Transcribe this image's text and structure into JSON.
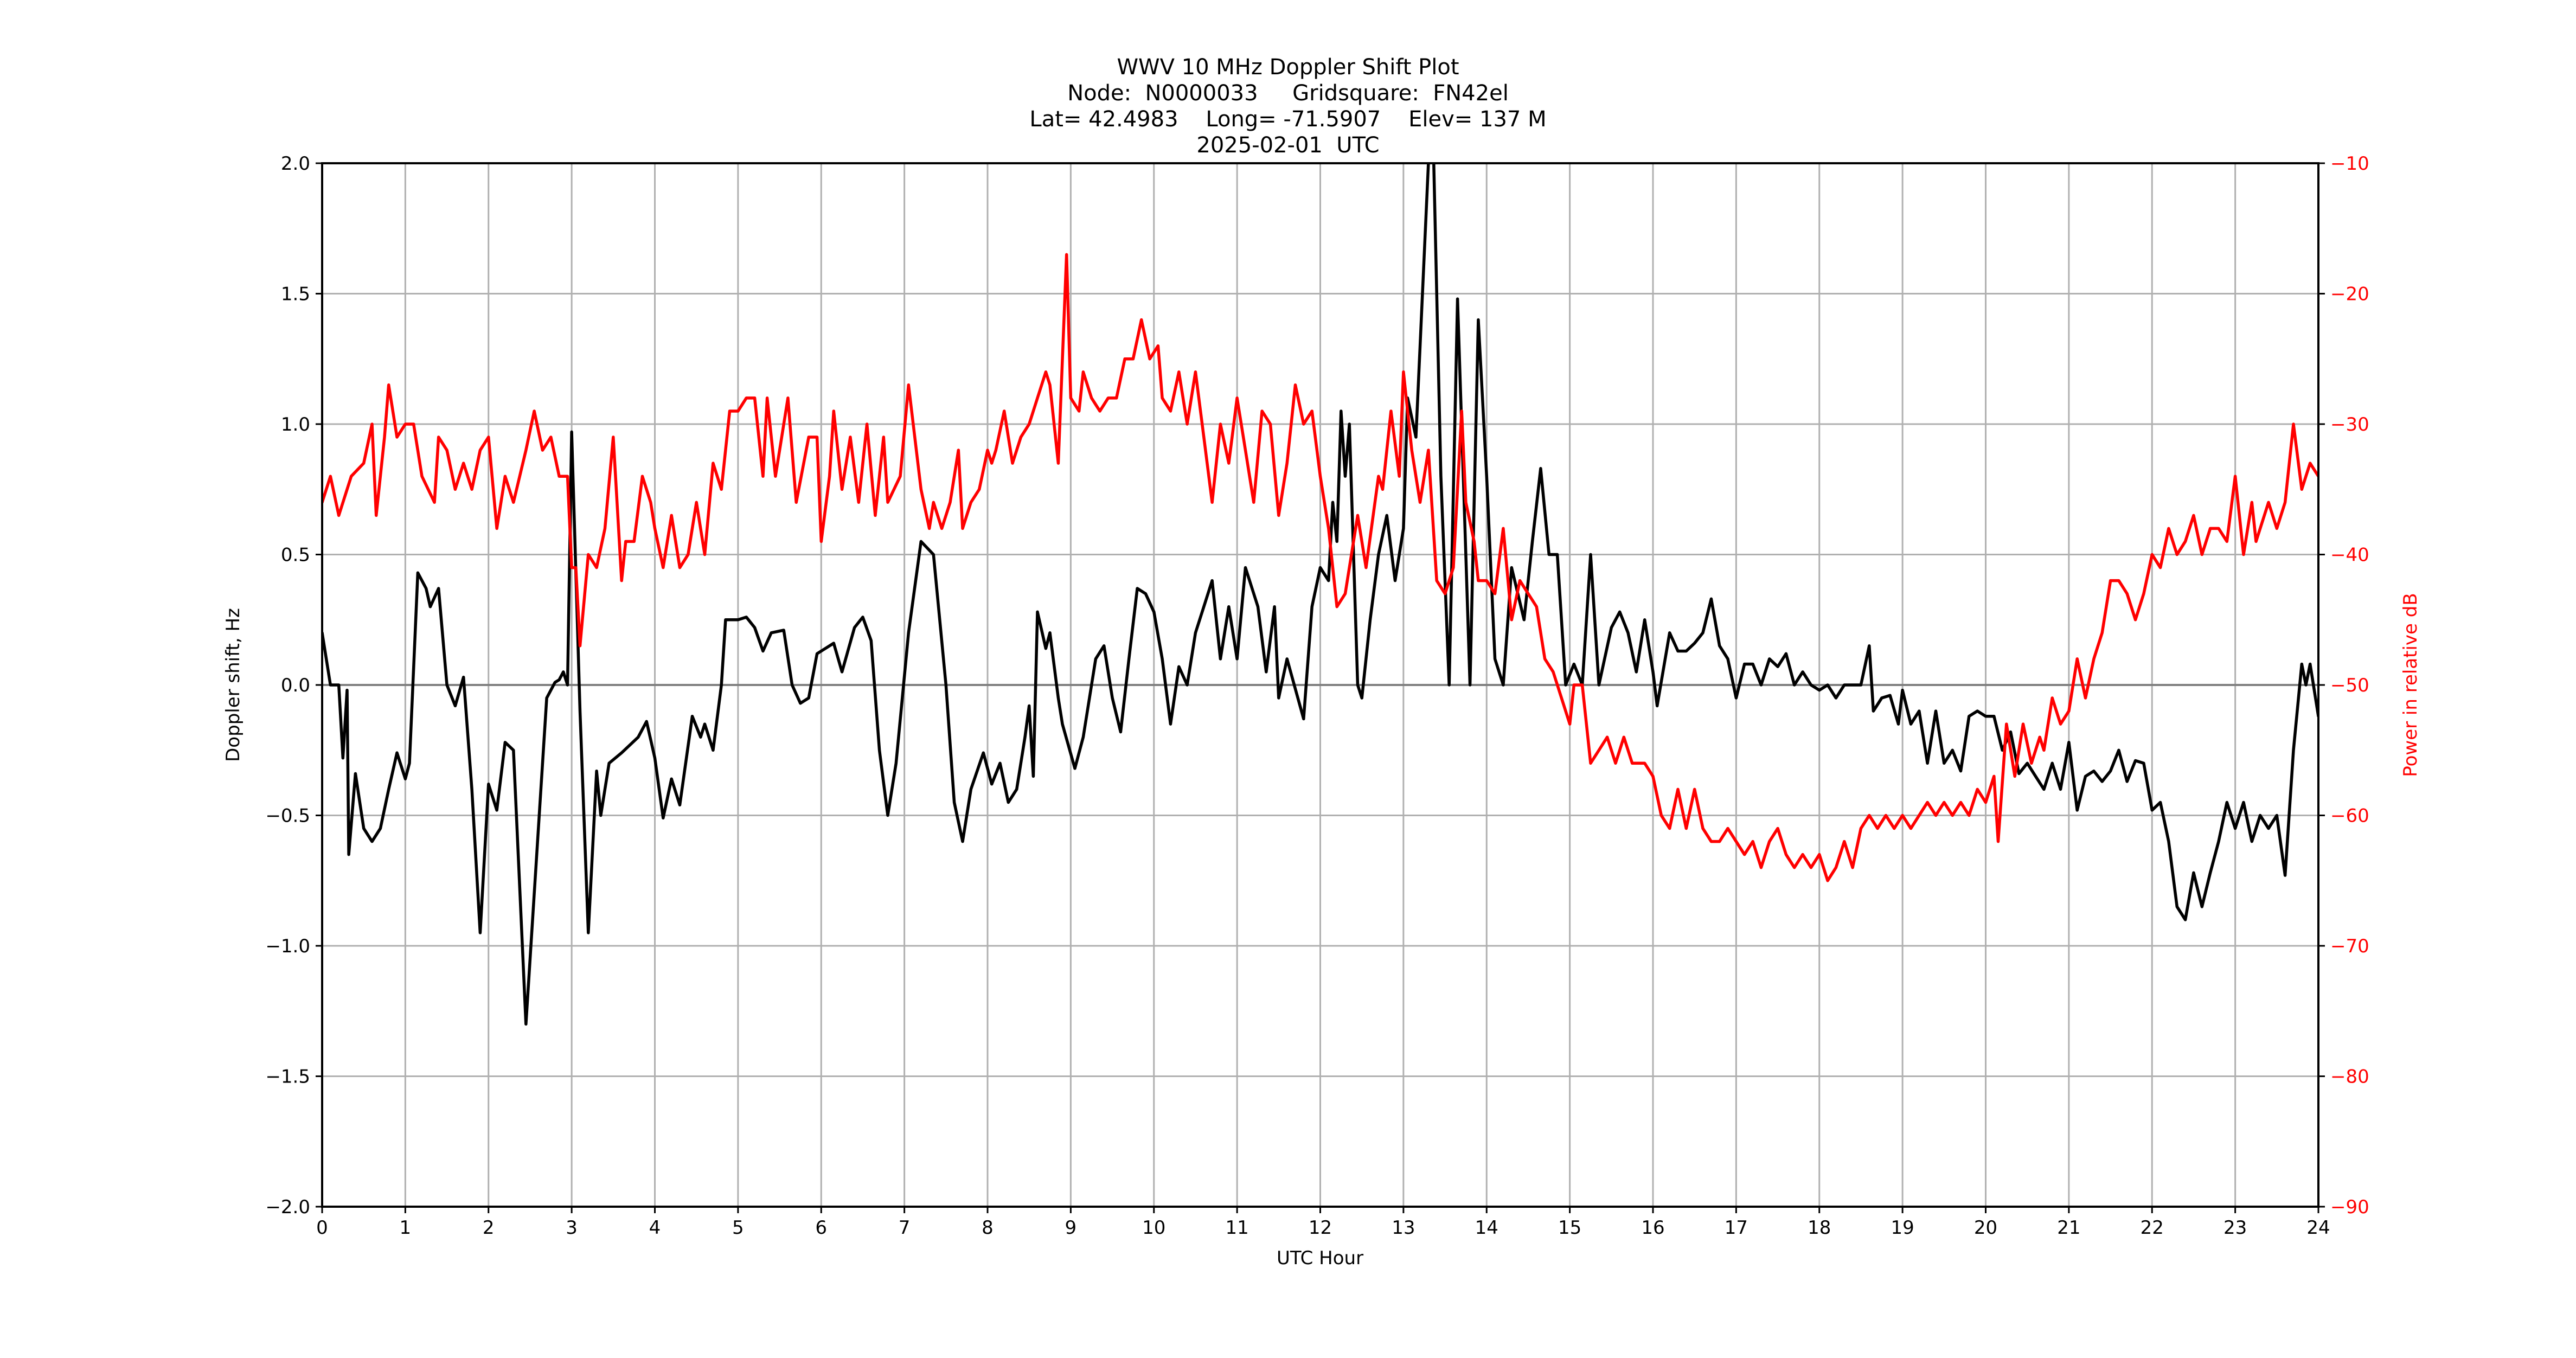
{
  "header": {
    "title_lines": [
      "WWV 10 MHz Doppler Shift Plot",
      "Node:  N0000033     Gridsquare:  FN42el",
      "Lat= 42.4983    Long= -71.5907    Elev= 137 M",
      "2025-02-01  UTC"
    ]
  },
  "axes": {
    "xlabel": "UTC Hour",
    "ylabel_left": "Doppler shift, Hz",
    "ylabel_right": "Power in relative dB",
    "x_ticks": [
      0,
      1,
      2,
      3,
      4,
      5,
      6,
      7,
      8,
      9,
      10,
      11,
      12,
      13,
      14,
      15,
      16,
      17,
      18,
      19,
      20,
      21,
      22,
      23,
      24
    ],
    "y_left_ticks": [
      "2.0",
      "1.5",
      "1.0",
      "0.5",
      "0.0",
      "−0.5",
      "−1.0",
      "−1.5",
      "−2.0"
    ],
    "y_left_values": [
      2.0,
      1.5,
      1.0,
      0.5,
      0.0,
      -0.5,
      -1.0,
      -1.5,
      -2.0
    ],
    "y_right_ticks": [
      "−10",
      "−20",
      "−30",
      "−40",
      "−50",
      "−60",
      "−70",
      "−80",
      "−90"
    ],
    "y_right_values": [
      -10,
      -20,
      -30,
      -40,
      -50,
      -60,
      -70,
      -80,
      -90
    ]
  },
  "colors": {
    "doppler_line": "#000000",
    "power_line": "#ff0000",
    "grid": "#b0b0b0",
    "zero_line": "#808080",
    "right_axis_text": "#ff0000"
  },
  "chart_data": {
    "type": "line",
    "title": "WWV 10 MHz Doppler Shift Plot",
    "subtitle": "Node: N0000033  Gridsquare: FN42el | Lat= 42.4983 Long= -71.5907 Elev= 137 M | 2025-02-01 UTC",
    "xlabel": "UTC Hour",
    "ylabel": "Doppler shift, Hz",
    "y2label": "Power in relative dB",
    "xlim": [
      0,
      24
    ],
    "ylim": [
      -2.0,
      2.0
    ],
    "y2lim": [
      -90,
      -10
    ],
    "grid": true,
    "legend": null,
    "series": [
      {
        "name": "Doppler shift (Hz)",
        "axis": "left",
        "color": "#000000",
        "x": [
          0.0,
          0.1,
          0.2,
          0.25,
          0.3,
          0.32,
          0.4,
          0.5,
          0.6,
          0.7,
          0.8,
          0.9,
          1.0,
          1.05,
          1.15,
          1.25,
          1.3,
          1.4,
          1.5,
          1.6,
          1.7,
          1.8,
          1.9,
          2.0,
          2.1,
          2.2,
          2.3,
          2.45,
          2.55,
          2.7,
          2.8,
          2.85,
          2.9,
          2.95,
          3.0,
          3.1,
          3.2,
          3.3,
          3.35,
          3.45,
          3.6,
          3.8,
          3.9,
          4.0,
          4.1,
          4.2,
          4.3,
          4.45,
          4.55,
          4.6,
          4.7,
          4.8,
          4.85,
          5.0,
          5.1,
          5.2,
          5.3,
          5.4,
          5.55,
          5.65,
          5.75,
          5.85,
          5.95,
          6.05,
          6.15,
          6.25,
          6.4,
          6.5,
          6.6,
          6.7,
          6.8,
          6.9,
          7.05,
          7.2,
          7.35,
          7.5,
          7.6,
          7.7,
          7.8,
          7.95,
          8.05,
          8.15,
          8.25,
          8.35,
          8.45,
          8.5,
          8.55,
          8.6,
          8.7,
          8.75,
          8.85,
          8.9,
          9.05,
          9.15,
          9.3,
          9.4,
          9.5,
          9.6,
          9.7,
          9.8,
          9.9,
          10.0,
          10.1,
          10.2,
          10.3,
          10.4,
          10.5,
          10.6,
          10.7,
          10.8,
          10.9,
          11.0,
          11.1,
          11.25,
          11.35,
          11.45,
          11.5,
          11.6,
          11.8,
          11.9,
          12.0,
          12.1,
          12.15,
          12.2,
          12.25,
          12.3,
          12.35,
          12.45,
          12.5,
          12.6,
          12.7,
          12.8,
          12.9,
          13.0,
          13.05,
          13.15,
          13.3,
          13.35,
          13.45,
          13.55,
          13.65,
          13.75,
          13.8,
          13.9,
          14.0,
          14.1,
          14.2,
          14.3,
          14.45,
          14.55,
          14.65,
          14.75,
          14.85,
          14.95,
          15.05,
          15.15,
          15.25,
          15.35,
          15.5,
          15.6,
          15.7,
          15.8,
          15.9,
          16.0,
          16.05,
          16.2,
          16.3,
          16.4,
          16.5,
          16.6,
          16.7,
          16.8,
          16.9,
          17.0,
          17.1,
          17.2,
          17.3,
          17.4,
          17.5,
          17.6,
          17.7,
          17.8,
          17.9,
          18.0,
          18.1,
          18.2,
          18.3,
          18.4,
          18.5,
          18.6,
          18.65,
          18.75,
          18.85,
          18.95,
          19.0,
          19.1,
          19.2,
          19.3,
          19.4,
          19.5,
          19.6,
          19.7,
          19.8,
          19.9,
          20.0,
          20.1,
          20.2,
          20.3,
          20.4,
          20.5,
          20.6,
          20.7,
          20.8,
          20.9,
          21.0,
          21.1,
          21.2,
          21.3,
          21.4,
          21.5,
          21.6,
          21.7,
          21.8,
          21.9,
          22.0,
          22.1,
          22.2,
          22.3,
          22.4,
          22.5,
          22.6,
          22.7,
          22.8,
          22.9,
          23.0,
          23.1,
          23.2,
          23.3,
          23.4,
          23.5,
          23.6,
          23.7,
          23.8,
          23.85,
          23.9,
          24.0
        ],
        "values": [
          0.2,
          0.0,
          0.0,
          -0.28,
          -0.02,
          -0.65,
          -0.34,
          -0.55,
          -0.6,
          -0.55,
          -0.4,
          -0.26,
          -0.36,
          -0.3,
          0.43,
          0.37,
          0.3,
          0.37,
          0.0,
          -0.08,
          0.03,
          -0.4,
          -0.95,
          -0.38,
          -0.48,
          -0.22,
          -0.25,
          -1.3,
          -0.8,
          -0.05,
          0.01,
          0.02,
          0.05,
          0.0,
          0.97,
          -0.1,
          -0.95,
          -0.33,
          -0.5,
          -0.3,
          -0.26,
          -0.2,
          -0.14,
          -0.28,
          -0.51,
          -0.36,
          -0.46,
          -0.12,
          -0.2,
          -0.15,
          -0.25,
          0.0,
          0.25,
          0.25,
          0.26,
          0.22,
          0.13,
          0.2,
          0.21,
          0.0,
          -0.07,
          -0.05,
          0.12,
          0.14,
          0.16,
          0.05,
          0.22,
          0.26,
          0.17,
          -0.25,
          -0.5,
          -0.3,
          0.2,
          0.55,
          0.5,
          0.0,
          -0.45,
          -0.6,
          -0.4,
          -0.26,
          -0.38,
          -0.3,
          -0.45,
          -0.4,
          -0.2,
          -0.08,
          -0.35,
          0.28,
          0.14,
          0.2,
          -0.05,
          -0.15,
          -0.32,
          -0.2,
          0.1,
          0.15,
          -0.05,
          -0.18,
          0.1,
          0.37,
          0.35,
          0.28,
          0.1,
          -0.15,
          0.07,
          0.0,
          0.2,
          0.3,
          0.4,
          0.1,
          0.3,
          0.1,
          0.45,
          0.3,
          0.05,
          0.3,
          -0.05,
          0.1,
          -0.13,
          0.3,
          0.45,
          0.4,
          0.7,
          0.55,
          1.05,
          0.8,
          1.0,
          0.0,
          -0.05,
          0.25,
          0.5,
          0.65,
          0.4,
          0.6,
          1.1,
          0.95,
          2.0,
          2.2,
          0.8,
          0.0,
          1.48,
          0.5,
          0.0,
          1.4,
          0.8,
          0.1,
          0.0,
          0.45,
          0.25,
          0.55,
          0.83,
          0.5,
          0.5,
          0.0,
          0.08,
          0.0,
          0.5,
          0.0,
          0.22,
          0.28,
          0.2,
          0.05,
          0.25,
          0.05,
          -0.08,
          0.2,
          0.13,
          0.13,
          0.16,
          0.2,
          0.33,
          0.15,
          0.1,
          -0.05,
          0.08,
          0.08,
          0.0,
          0.1,
          0.07,
          0.12,
          0.0,
          0.05,
          0.0,
          -0.02,
          0.0,
          -0.05,
          0.0,
          0.0,
          0.0,
          0.15,
          -0.1,
          -0.05,
          -0.04,
          -0.15,
          -0.02,
          -0.15,
          -0.1,
          -0.3,
          -0.1,
          -0.3,
          -0.25,
          -0.33,
          -0.12,
          -0.1,
          -0.12,
          -0.12,
          -0.25,
          -0.18,
          -0.34,
          -0.3,
          -0.35,
          -0.4,
          -0.3,
          -0.4,
          -0.22,
          -0.48,
          -0.35,
          -0.33,
          -0.37,
          -0.33,
          -0.25,
          -0.37,
          -0.29,
          -0.3,
          -0.48,
          -0.45,
          -0.6,
          -0.85,
          -0.9,
          -0.72,
          -0.85,
          -0.72,
          -0.6,
          -0.45,
          -0.55,
          -0.45,
          -0.6,
          -0.5,
          -0.55,
          -0.5,
          -0.73,
          -0.25,
          0.08,
          0.0,
          0.08,
          -0.12
        ]
      },
      {
        "name": "Power (relative dB)",
        "axis": "right",
        "color": "#ff0000",
        "x": [
          0.0,
          0.1,
          0.2,
          0.35,
          0.5,
          0.6,
          0.65,
          0.75,
          0.8,
          0.9,
          1.0,
          1.1,
          1.2,
          1.35,
          1.4,
          1.5,
          1.6,
          1.7,
          1.8,
          1.9,
          2.0,
          2.1,
          2.2,
          2.3,
          2.45,
          2.55,
          2.65,
          2.75,
          2.85,
          2.95,
          3.0,
          3.05,
          3.1,
          3.2,
          3.3,
          3.4,
          3.5,
          3.6,
          3.65,
          3.75,
          3.85,
          3.95,
          4.0,
          4.1,
          4.2,
          4.3,
          4.4,
          4.5,
          4.6,
          4.7,
          4.8,
          4.9,
          5.0,
          5.1,
          5.2,
          5.3,
          5.35,
          5.45,
          5.6,
          5.7,
          5.85,
          5.95,
          6.0,
          6.1,
          6.15,
          6.25,
          6.35,
          6.45,
          6.55,
          6.65,
          6.75,
          6.8,
          6.95,
          7.05,
          7.2,
          7.3,
          7.35,
          7.45,
          7.55,
          7.65,
          7.7,
          7.8,
          7.9,
          8.0,
          8.05,
          8.1,
          8.2,
          8.3,
          8.4,
          8.5,
          8.6,
          8.7,
          8.75,
          8.85,
          8.95,
          9.0,
          9.1,
          9.15,
          9.25,
          9.35,
          9.45,
          9.55,
          9.65,
          9.75,
          9.85,
          9.95,
          10.05,
          10.1,
          10.2,
          10.3,
          10.4,
          10.5,
          10.6,
          10.7,
          10.8,
          10.9,
          11.0,
          11.1,
          11.2,
          11.3,
          11.4,
          11.5,
          11.6,
          11.7,
          11.8,
          11.9,
          12.0,
          12.1,
          12.2,
          12.3,
          12.45,
          12.55,
          12.7,
          12.75,
          12.85,
          12.95,
          13.0,
          13.1,
          13.2,
          13.3,
          13.4,
          13.5,
          13.6,
          13.7,
          13.75,
          13.85,
          13.9,
          14.0,
          14.1,
          14.2,
          14.3,
          14.4,
          14.5,
          14.6,
          14.7,
          14.8,
          14.9,
          15.0,
          15.05,
          15.15,
          15.25,
          15.35,
          15.45,
          15.55,
          15.65,
          15.75,
          15.9,
          16.0,
          16.1,
          16.2,
          16.3,
          16.4,
          16.5,
          16.6,
          16.7,
          16.8,
          16.9,
          17.0,
          17.1,
          17.2,
          17.3,
          17.4,
          17.5,
          17.6,
          17.7,
          17.8,
          17.9,
          18.0,
          18.1,
          18.2,
          18.3,
          18.4,
          18.5,
          18.6,
          18.7,
          18.8,
          18.9,
          19.0,
          19.1,
          19.2,
          19.3,
          19.4,
          19.5,
          19.6,
          19.7,
          19.8,
          19.9,
          20.0,
          20.1,
          20.15,
          20.25,
          20.35,
          20.45,
          20.55,
          20.65,
          20.7,
          20.8,
          20.9,
          21.0,
          21.1,
          21.2,
          21.3,
          21.4,
          21.5,
          21.6,
          21.7,
          21.8,
          21.9,
          22.0,
          22.1,
          22.2,
          22.3,
          22.4,
          22.5,
          22.6,
          22.7,
          22.8,
          22.9,
          23.0,
          23.1,
          23.2,
          23.25,
          23.4,
          23.5,
          23.6,
          23.7,
          23.8,
          23.9,
          24.0
        ],
        "values": [
          -36,
          -34,
          -37,
          -34,
          -33,
          -30,
          -37,
          -31,
          -27,
          -31,
          -30,
          -30,
          -34,
          -36,
          -31,
          -32,
          -35,
          -33,
          -35,
          -32,
          -31,
          -38,
          -34,
          -36,
          -32,
          -29,
          -32,
          -31,
          -34,
          -34,
          -41,
          -41,
          -47,
          -40,
          -41,
          -38,
          -31,
          -42,
          -39,
          -39,
          -34,
          -36,
          -38,
          -41,
          -37,
          -41,
          -40,
          -36,
          -40,
          -33,
          -35,
          -29,
          -29,
          -28,
          -28,
          -34,
          -28,
          -34,
          -28,
          -36,
          -31,
          -31,
          -39,
          -34,
          -29,
          -35,
          -31,
          -36,
          -30,
          -37,
          -31,
          -36,
          -34,
          -27,
          -35,
          -38,
          -36,
          -38,
          -36,
          -32,
          -38,
          -36,
          -35,
          -32,
          -33,
          -32,
          -29,
          -33,
          -31,
          -30,
          -28,
          -26,
          -27,
          -33,
          -17,
          -28,
          -29,
          -26,
          -28,
          -29,
          -28,
          -28,
          -25,
          -25,
          -22,
          -25,
          -24,
          -28,
          -29,
          -26,
          -30,
          -26,
          -31,
          -36,
          -30,
          -33,
          -28,
          -32,
          -36,
          -29,
          -30,
          -37,
          -33,
          -27,
          -30,
          -29,
          -34,
          -38,
          -44,
          -43,
          -37,
          -41,
          -34,
          -35,
          -29,
          -34,
          -26,
          -32,
          -36,
          -32,
          -42,
          -43,
          -41,
          -29,
          -36,
          -39,
          -42,
          -42,
          -43,
          -38,
          -45,
          -42,
          -43,
          -44,
          -48,
          -49,
          -51,
          -53,
          -50,
          -50,
          -56,
          -55,
          -54,
          -56,
          -54,
          -56,
          -56,
          -57,
          -60,
          -61,
          -58,
          -61,
          -58,
          -61,
          -62,
          -62,
          -61,
          -62,
          -63,
          -62,
          -64,
          -62,
          -61,
          -63,
          -64,
          -63,
          -64,
          -63,
          -65,
          -64,
          -62,
          -64,
          -61,
          -60,
          -61,
          -60,
          -61,
          -60,
          -61,
          -60,
          -59,
          -60,
          -59,
          -60,
          -59,
          -60,
          -58,
          -59,
          -57,
          -62,
          -53,
          -57,
          -53,
          -56,
          -54,
          -55,
          -51,
          -53,
          -52,
          -48,
          -51,
          -48,
          -46,
          -42,
          -42,
          -43,
          -45,
          -43,
          -40,
          -41,
          -38,
          -40,
          -39,
          -37,
          -40,
          -38,
          -38,
          -39,
          -34,
          -40,
          -36,
          -39,
          -36,
          -38,
          -36,
          -30,
          -35,
          -33,
          -34
        ]
      }
    ]
  }
}
